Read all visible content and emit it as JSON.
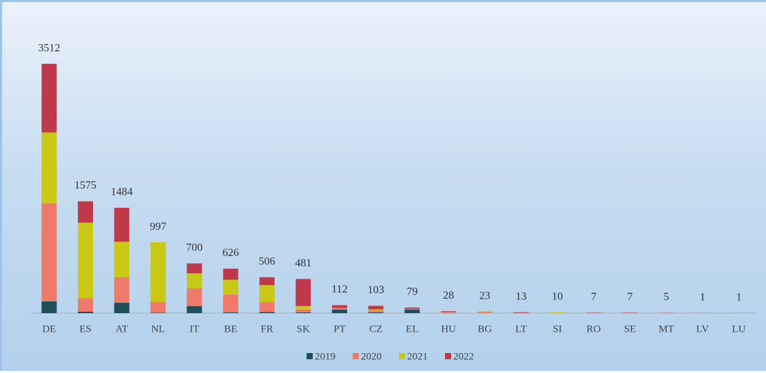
{
  "chart_data": {
    "type": "stacked_bar",
    "categories": [
      "DE",
      "ES",
      "AT",
      "NL",
      "IT",
      "BE",
      "FR",
      "SK",
      "PT",
      "CZ",
      "EL",
      "HU",
      "BG",
      "LT",
      "SI",
      "RO",
      "SE",
      "MT",
      "LV",
      "LU"
    ],
    "series": [
      {
        "name": "2019",
        "color": "#1f4e5a",
        "values": [
          165,
          20,
          145,
          5,
          100,
          10,
          15,
          10,
          50,
          10,
          50,
          3,
          0,
          0,
          0,
          0,
          0,
          0,
          0,
          0
        ]
      },
      {
        "name": "2020",
        "color": "#f07a6a",
        "values": [
          1380,
          190,
          360,
          150,
          250,
          250,
          140,
          40,
          20,
          30,
          10,
          10,
          18,
          3,
          2,
          2,
          2,
          2,
          0,
          1
        ]
      },
      {
        "name": "2021",
        "color": "#c8c815",
        "values": [
          1000,
          1065,
          500,
          842,
          210,
          210,
          240,
          50,
          2,
          13,
          0,
          5,
          5,
          0,
          8,
          0,
          0,
          0,
          0,
          0
        ]
      },
      {
        "name": "2022",
        "color": "#c0394b",
        "values": [
          967,
          300,
          479,
          0,
          140,
          156,
          111,
          381,
          40,
          50,
          19,
          10,
          0,
          10,
          0,
          5,
          5,
          3,
          1,
          0
        ]
      }
    ],
    "totals": [
      3512,
      1575,
      1484,
      997,
      700,
      626,
      506,
      481,
      112,
      103,
      79,
      28,
      23,
      13,
      10,
      7,
      7,
      5,
      1,
      1
    ],
    "ylim": [
      0,
      3800
    ]
  }
}
